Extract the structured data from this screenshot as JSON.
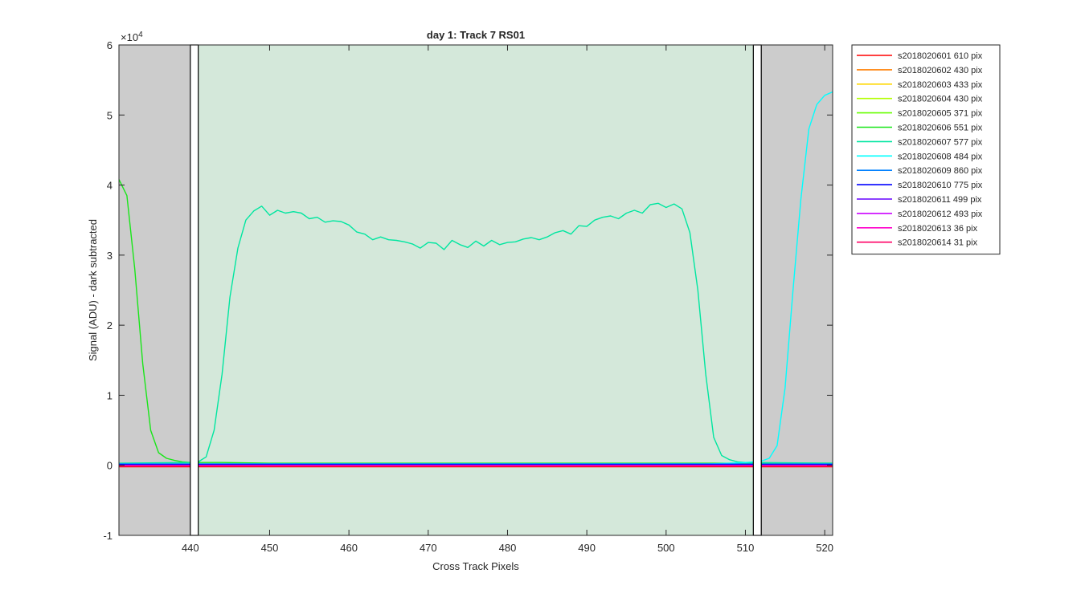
{
  "chart_data": {
    "type": "line",
    "title": "day 1: Track 7  RS01",
    "xlabel": "Cross Track Pixels",
    "ylabel": "Signal (ADU) - dark subtracted",
    "y_exponent": "×10",
    "y_exponent_power": "4",
    "xlim": [
      431,
      521
    ],
    "ylim": [
      -1,
      6
    ],
    "y_scale_factor": 10000,
    "x_ticks": [
      440,
      450,
      460,
      470,
      480,
      490,
      500,
      510,
      520
    ],
    "y_ticks": [
      -1,
      0,
      1,
      2,
      3,
      4,
      5,
      6
    ],
    "grid": false,
    "legend_position": "outside-right",
    "regions": [
      {
        "kind": "excluded",
        "x_start": 431,
        "x_end": 440,
        "color": "#cccccc"
      },
      {
        "kind": "excluded",
        "x_start": 512,
        "x_end": 521,
        "color": "#cccccc"
      },
      {
        "kind": "track",
        "x_start": 441,
        "x_end": 511,
        "color": "#d4e8da"
      }
    ],
    "boundary_lines": [
      {
        "x_left": 440,
        "x_right": 441
      },
      {
        "x_left": 511,
        "x_right": 512
      }
    ],
    "series": [
      {
        "name": "s2018020601 610 pix",
        "color": "#ff0000",
        "x": [
          431,
          521
        ],
        "y": [
          -0.02,
          -0.02
        ]
      },
      {
        "name": "s2018020602 430 pix",
        "color": "#ff7f00",
        "x": [
          431,
          521
        ],
        "y": [
          0.0,
          0.0
        ]
      },
      {
        "name": "s2018020603 433 pix",
        "color": "#ffd700",
        "x": [
          431,
          521
        ],
        "y": [
          0.01,
          0.01
        ]
      },
      {
        "name": "s2018020604 430 pix",
        "color": "#b3ff00",
        "x": [
          431,
          521
        ],
        "y": [
          0.02,
          0.02
        ]
      },
      {
        "name": "s2018020605 371 pix",
        "color": "#66ff00",
        "x": [
          431,
          521
        ],
        "y": [
          0.02,
          0.02
        ]
      },
      {
        "name": "s2018020606 551 pix",
        "color": "#19e619",
        "x": [
          431,
          432,
          433,
          434,
          435,
          436,
          437,
          438,
          439,
          440,
          441,
          444,
          450,
          460,
          470,
          480,
          490,
          500,
          510,
          521
        ],
        "y": [
          4.08,
          3.85,
          2.8,
          1.45,
          0.5,
          0.18,
          0.1,
          0.07,
          0.05,
          0.04,
          0.04,
          0.04,
          0.03,
          0.03,
          0.03,
          0.03,
          0.03,
          0.03,
          0.03,
          0.03
        ]
      },
      {
        "name": "s2018020607 577 pix",
        "color": "#00e6a0",
        "x": [
          431,
          440,
          441,
          442,
          443,
          444,
          445,
          446,
          447,
          448,
          449,
          450,
          451,
          452,
          453,
          454,
          455,
          456,
          457,
          458,
          459,
          460,
          461,
          462,
          463,
          464,
          465,
          466,
          467,
          468,
          469,
          470,
          471,
          472,
          473,
          474,
          475,
          476,
          477,
          478,
          479,
          480,
          481,
          482,
          483,
          484,
          485,
          486,
          487,
          488,
          489,
          490,
          491,
          492,
          493,
          494,
          495,
          496,
          497,
          498,
          499,
          500,
          501,
          502,
          503,
          504,
          505,
          506,
          507,
          508,
          509,
          510,
          511,
          521
        ],
        "y": [
          0.03,
          0.04,
          0.05,
          0.12,
          0.5,
          1.3,
          2.4,
          3.1,
          3.5,
          3.63,
          3.7,
          3.57,
          3.64,
          3.6,
          3.62,
          3.6,
          3.52,
          3.54,
          3.47,
          3.49,
          3.48,
          3.43,
          3.33,
          3.3,
          3.22,
          3.26,
          3.22,
          3.21,
          3.19,
          3.16,
          3.1,
          3.18,
          3.17,
          3.08,
          3.21,
          3.15,
          3.11,
          3.2,
          3.13,
          3.21,
          3.15,
          3.18,
          3.19,
          3.23,
          3.25,
          3.22,
          3.26,
          3.32,
          3.35,
          3.3,
          3.42,
          3.41,
          3.5,
          3.54,
          3.56,
          3.52,
          3.6,
          3.64,
          3.6,
          3.72,
          3.74,
          3.68,
          3.73,
          3.66,
          3.32,
          2.5,
          1.3,
          0.4,
          0.14,
          0.08,
          0.05,
          0.04,
          0.04,
          0.03
        ]
      },
      {
        "name": "s2018020608 484 pix",
        "color": "#00ffff",
        "x": [
          431,
          505,
          508,
          510,
          511,
          512,
          513,
          514,
          515,
          516,
          517,
          518,
          519,
          520,
          521
        ],
        "y": [
          0.02,
          0.02,
          0.03,
          0.04,
          0.05,
          0.06,
          0.1,
          0.28,
          1.1,
          2.5,
          3.8,
          4.8,
          5.15,
          5.28,
          5.33
        ]
      },
      {
        "name": "s2018020609 860 pix",
        "color": "#0080ff",
        "x": [
          431,
          521
        ],
        "y": [
          0.02,
          0.02
        ]
      },
      {
        "name": "s2018020610 775 pix",
        "color": "#0000ff",
        "x": [
          431,
          521
        ],
        "y": [
          0.01,
          0.01
        ]
      },
      {
        "name": "s2018020611 499 pix",
        "color": "#6600ff",
        "x": [
          431,
          521
        ],
        "y": [
          0.0,
          0.0
        ]
      },
      {
        "name": "s2018020612 493 pix",
        "color": "#cc00ff",
        "x": [
          431,
          521
        ],
        "y": [
          0.0,
          0.0
        ]
      },
      {
        "name": "s2018020613 36 pix",
        "color": "#ff00cc",
        "x": [
          431,
          521
        ],
        "y": [
          -0.01,
          -0.01
        ]
      },
      {
        "name": "s2018020614 31 pix",
        "color": "#ff0066",
        "x": [
          431,
          521
        ],
        "y": [
          -0.01,
          -0.01
        ]
      }
    ]
  }
}
